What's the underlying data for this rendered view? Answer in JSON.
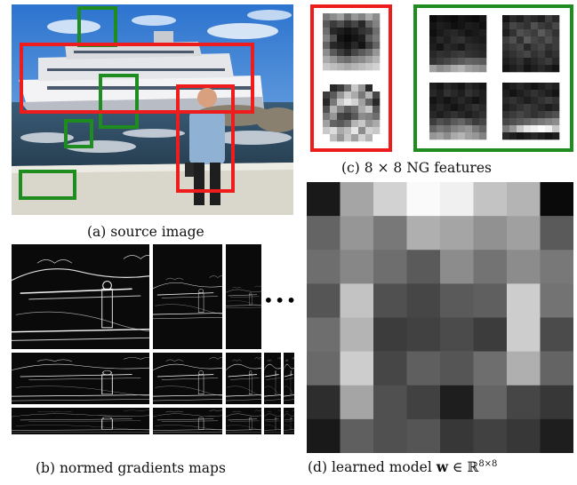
{
  "figure": {
    "captions": {
      "a": "(a) source image",
      "b": "(b) normed gradients maps",
      "c": "(c) 8 × 8 NG features",
      "d_prefix": "(d) learned model ",
      "d_w": "w",
      "d_suffix": " ∈ ℝ",
      "d_sup": "8×8"
    },
    "ellipsis": "•••",
    "colors": {
      "red_box": "#ee1c1c",
      "green_box": "#1e8c1e",
      "sky": "#3f86d6",
      "sea": "#2f4f68",
      "wall": "#d9d6cc"
    },
    "source_boxes": {
      "red": [
        "object-box-ship",
        "object-box-person"
      ],
      "green": [
        "background-box-sky",
        "background-box-deck",
        "background-box-water",
        "background-box-wall"
      ]
    },
    "ng_features": {
      "positive": [
        [
          [
            120,
            140,
            160,
            110,
            150,
            130,
            170,
            140
          ],
          [
            90,
            60,
            80,
            50,
            70,
            40,
            100,
            130
          ],
          [
            110,
            40,
            30,
            20,
            30,
            50,
            60,
            110
          ],
          [
            130,
            80,
            20,
            10,
            20,
            30,
            90,
            120
          ],
          [
            100,
            40,
            30,
            20,
            40,
            20,
            60,
            100
          ],
          [
            140,
            90,
            60,
            40,
            70,
            90,
            110,
            150
          ],
          [
            170,
            150,
            120,
            110,
            130,
            140,
            160,
            180
          ],
          [
            200,
            190,
            180,
            170,
            180,
            190,
            200,
            210
          ]
        ],
        [
          [
            255,
            40,
            60,
            110,
            200,
            150,
            40,
            255
          ],
          [
            60,
            90,
            150,
            200,
            170,
            120,
            180,
            70
          ],
          [
            40,
            120,
            200,
            230,
            210,
            160,
            100,
            40
          ],
          [
            80,
            180,
            130,
            90,
            110,
            170,
            200,
            90
          ],
          [
            120,
            150,
            70,
            60,
            90,
            140,
            130,
            110
          ],
          [
            160,
            100,
            90,
            110,
            180,
            200,
            150,
            170
          ],
          [
            200,
            220,
            170,
            190,
            230,
            140,
            210,
            200
          ],
          [
            255,
            190,
            150,
            200,
            160,
            210,
            180,
            255
          ]
        ]
      ],
      "negative": [
        [
          [
            10,
            20,
            15,
            10,
            20,
            15,
            10,
            20
          ],
          [
            20,
            30,
            25,
            15,
            20,
            30,
            25,
            15
          ],
          [
            15,
            25,
            35,
            40,
            30,
            20,
            25,
            30
          ],
          [
            25,
            40,
            30,
            45,
            50,
            35,
            30,
            25
          ],
          [
            30,
            20,
            40,
            35,
            25,
            45,
            40,
            35
          ],
          [
            40,
            50,
            45,
            55,
            60,
            50,
            45,
            40
          ],
          [
            50,
            60,
            70,
            80,
            90,
            100,
            95,
            90
          ],
          [
            160,
            140,
            150,
            170,
            180,
            160,
            150,
            140
          ]
        ],
        [
          [
            20,
            40,
            30,
            50,
            40,
            30,
            60,
            40
          ],
          [
            40,
            70,
            60,
            50,
            80,
            60,
            50,
            70
          ],
          [
            30,
            50,
            80,
            70,
            60,
            90,
            70,
            50
          ],
          [
            60,
            80,
            50,
            90,
            70,
            60,
            80,
            60
          ],
          [
            50,
            60,
            70,
            40,
            60,
            70,
            50,
            60
          ],
          [
            40,
            50,
            60,
            70,
            50,
            60,
            40,
            50
          ],
          [
            30,
            40,
            50,
            30,
            40,
            50,
            60,
            40
          ],
          [
            20,
            30,
            40,
            20,
            30,
            40,
            30,
            20
          ]
        ],
        [
          [
            30,
            20,
            40,
            30,
            20,
            40,
            30,
            20
          ],
          [
            40,
            30,
            50,
            40,
            30,
            50,
            40,
            30
          ],
          [
            20,
            30,
            20,
            30,
            40,
            30,
            20,
            30
          ],
          [
            30,
            40,
            30,
            20,
            30,
            40,
            50,
            40
          ],
          [
            40,
            30,
            40,
            50,
            40,
            30,
            40,
            50
          ],
          [
            60,
            80,
            70,
            90,
            100,
            80,
            60,
            70
          ],
          [
            100,
            120,
            110,
            130,
            140,
            150,
            120,
            100
          ],
          [
            150,
            160,
            140,
            170,
            180,
            160,
            150,
            130
          ]
        ],
        [
          [
            20,
            30,
            40,
            30,
            20,
            30,
            40,
            30
          ],
          [
            30,
            20,
            30,
            40,
            50,
            40,
            30,
            20
          ],
          [
            40,
            50,
            40,
            30,
            40,
            50,
            60,
            50
          ],
          [
            30,
            40,
            50,
            60,
            50,
            40,
            30,
            40
          ],
          [
            50,
            60,
            70,
            60,
            50,
            60,
            70,
            80
          ],
          [
            70,
            80,
            90,
            100,
            110,
            120,
            130,
            140
          ],
          [
            120,
            150,
            200,
            230,
            240,
            250,
            240,
            200
          ],
          [
            40,
            30,
            20,
            30,
            40,
            30,
            20,
            30
          ]
        ]
      ]
    },
    "model_w": [
      [
        25,
        165,
        210,
        250,
        240,
        195,
        180,
        10
      ],
      [
        100,
        150,
        120,
        175,
        165,
        145,
        160,
        90
      ],
      [
        110,
        135,
        110,
        90,
        140,
        115,
        140,
        120
      ],
      [
        85,
        195,
        80,
        70,
        90,
        95,
        205,
        115
      ],
      [
        110,
        180,
        60,
        65,
        75,
        60,
        205,
        75
      ],
      [
        105,
        205,
        70,
        95,
        85,
        110,
        175,
        100
      ],
      [
        45,
        165,
        80,
        65,
        30,
        100,
        70,
        55
      ],
      [
        25,
        95,
        80,
        85,
        55,
        65,
        55,
        30
      ]
    ]
  }
}
